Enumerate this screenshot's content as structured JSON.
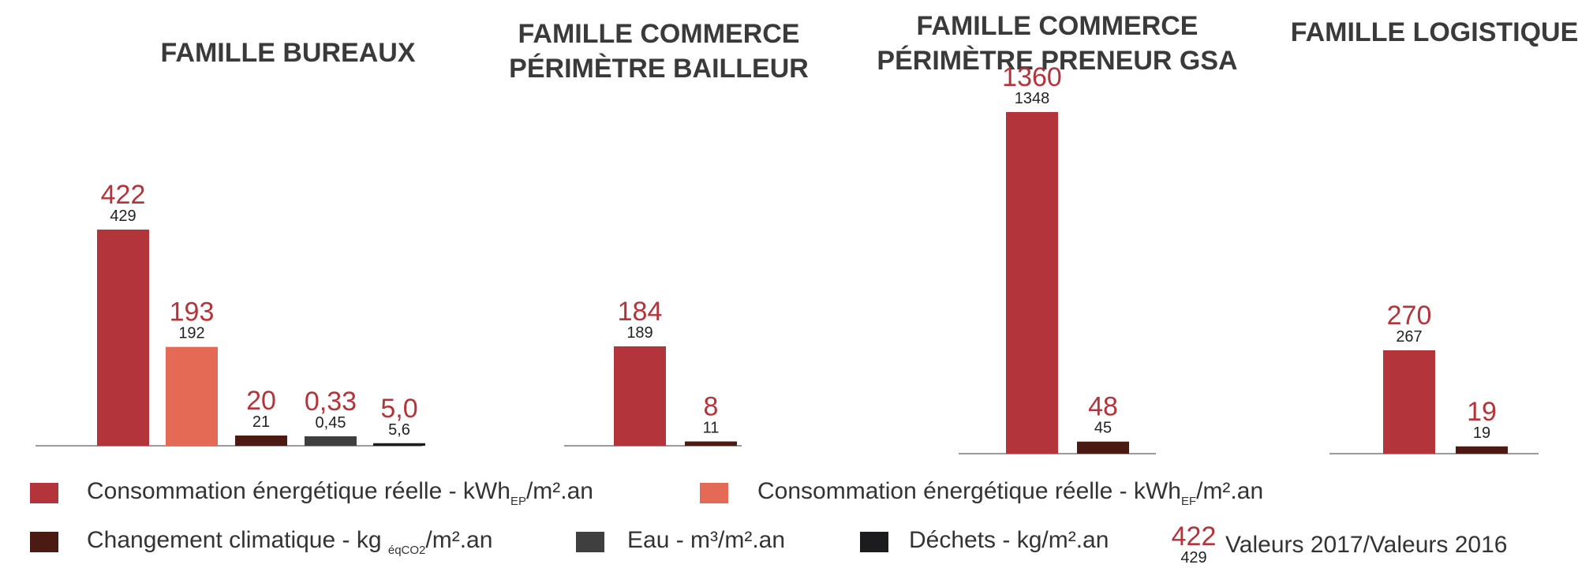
{
  "chart_data": {
    "type": "bar",
    "panels": [
      {
        "title_lines": [
          "FAMILLE BUREAUX"
        ],
        "bars": [
          {
            "series": "energy_red",
            "v2017": "422",
            "v2016": "429",
            "value": 422
          },
          {
            "series": "energy_orange",
            "v2017": "193",
            "v2016": "192",
            "value": 193
          },
          {
            "series": "climate",
            "v2017": "20",
            "v2016": "21",
            "value": 20
          },
          {
            "series": "water",
            "v2017": "0,33",
            "v2016": "0,45",
            "value": 0.33
          },
          {
            "series": "waste",
            "v2017": "5,0",
            "v2016": "5,6",
            "value": 5.0
          }
        ]
      },
      {
        "title_lines": [
          "FAMILLE COMMERCE",
          "PÉRIMÈTRE BAILLEUR"
        ],
        "bars": [
          {
            "series": "energy_red",
            "v2017": "184",
            "v2016": "189",
            "value": 184
          },
          {
            "series": "climate",
            "v2017": "8",
            "v2016": "11",
            "value": 8
          }
        ]
      },
      {
        "title_lines": [
          "FAMILLE COMMERCE",
          "PÉRIMÈTRE PRENEUR GSA"
        ],
        "bars": [
          {
            "series": "energy_red",
            "v2017": "1360",
            "v2016": "1348",
            "value": 1360
          },
          {
            "series": "climate",
            "v2017": "48",
            "v2016": "45",
            "value": 48
          }
        ]
      },
      {
        "title_lines": [
          "FAMILLE LOGISTIQUE"
        ],
        "bars": [
          {
            "series": "energy_red",
            "v2017": "270",
            "v2016": "267",
            "value": 270
          },
          {
            "series": "climate",
            "v2017": "19",
            "v2016": "19",
            "value": 19
          }
        ]
      }
    ],
    "legend": {
      "energy_red": {
        "color": "#b3343a",
        "text": "Consommation énergétique réelle - kWh",
        "sub": "EP",
        "after": "/m².an"
      },
      "energy_orange": {
        "color": "#e46a55",
        "text": "Consommation énergétique réelle - kWh",
        "sub": "EF",
        "after": "/m².an"
      },
      "climate": {
        "color": "#4b1a12",
        "text": "Changement climatique - kg ",
        "sub": "éqCO2",
        "after": "/m².an"
      },
      "water": {
        "color": "#3f3f3f",
        "text": "Eau - m³/m².an",
        "sub": "",
        "after": ""
      },
      "waste": {
        "color": "#1c1c1e",
        "text": "Déchets - kg/m².an",
        "sub": "",
        "after": ""
      },
      "values_key": {
        "v2017": "422",
        "v2016": "429",
        "text": "Valeurs 2017/Valeurs 2016"
      }
    },
    "value_colors": {
      "v2017": "#b3343a",
      "v2016": "#222222"
    }
  }
}
